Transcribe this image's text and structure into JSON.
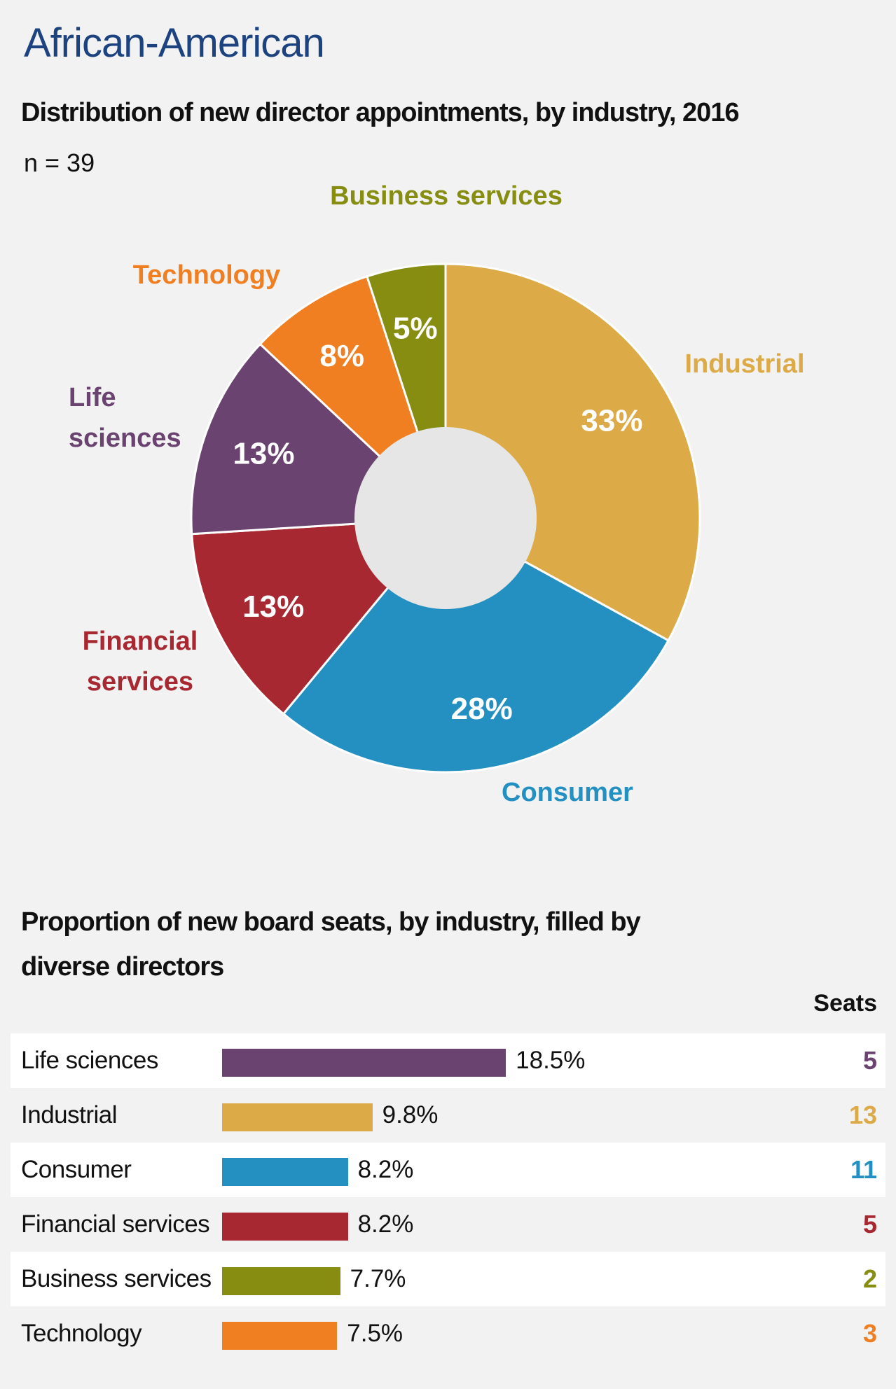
{
  "heading": "African-American",
  "chart_data": [
    {
      "type": "pie",
      "title": "Distribution of new director appointments, by industry, 2016",
      "subtitle": "n = 39",
      "slices": [
        {
          "label": "Industrial",
          "value": 33,
          "value_label": "33%",
          "color": "#dcaa46"
        },
        {
          "label": "Consumer",
          "value": 28,
          "value_label": "28%",
          "color": "#2490c1"
        },
        {
          "label": "Financial services",
          "value": 13,
          "value_label": "13%",
          "color": "#a82832"
        },
        {
          "label": "Life sciences",
          "value": 13,
          "value_label": "13%",
          "color": "#6a4371"
        },
        {
          "label": "Technology",
          "value": 8,
          "value_label": "8%",
          "color": "#f07f22"
        },
        {
          "label": "Business services",
          "value": 5,
          "value_label": "5%",
          "color": "#868d11"
        }
      ],
      "center_color": "#e6e6e6"
    },
    {
      "type": "bar",
      "title": "Proportion of new board seats, by industry, filled by diverse directors",
      "seats_header": "Seats",
      "rows": [
        {
          "label": "Life sciences",
          "value": 18.5,
          "value_label": "18.5%",
          "seats": "5",
          "color": "#6a4371"
        },
        {
          "label": "Industrial",
          "value": 9.8,
          "value_label": "9.8%",
          "seats": "13",
          "color": "#dcaa46"
        },
        {
          "label": "Consumer",
          "value": 8.2,
          "value_label": "8.2%",
          "seats": "11",
          "color": "#2490c1"
        },
        {
          "label": "Financial services",
          "value": 8.2,
          "value_label": "8.2%",
          "seats": "5",
          "color": "#a82832"
        },
        {
          "label": "Business services",
          "value": 7.7,
          "value_label": "7.7%",
          "seats": "2",
          "color": "#868d11"
        },
        {
          "label": "Technology",
          "value": 7.5,
          "value_label": "7.5%",
          "seats": "3",
          "color": "#f07f22"
        }
      ]
    }
  ]
}
